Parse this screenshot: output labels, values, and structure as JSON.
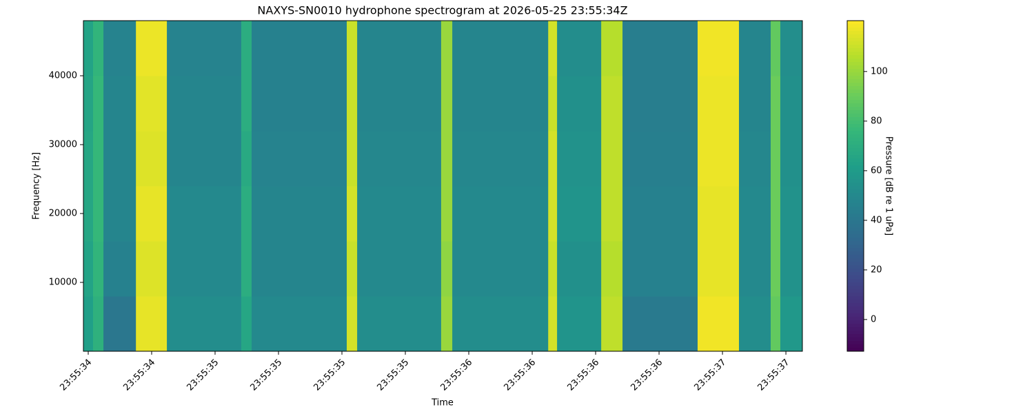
{
  "chart_data": {
    "type": "spectrogram",
    "title": "NAXYS-SN0010 hydrophone spectrogram at 2026-05-25 23:55:34Z",
    "x_label": "Time",
    "y_label": "Frequency [Hz]",
    "colorbar_label": "Pressure [dB re 1 uPa]",
    "colormap": "viridis",
    "xbins": [
      34.481,
      34.519,
      34.56,
      34.688,
      34.81,
      35.103,
      35.144,
      35.519,
      35.56,
      35.891,
      35.935,
      36.313,
      36.348,
      36.522,
      36.606,
      36.902,
      37.065,
      37.19,
      37.228,
      37.315
    ],
    "ybins": [
      0,
      8000,
      16000,
      24000,
      32000,
      40000,
      48000
    ],
    "values": [
      [
        62,
        72,
        40,
        116,
        52,
        66,
        50,
        112,
        52,
        100,
        52,
        112,
        56,
        108,
        42,
        118,
        52,
        88,
        58
      ],
      [
        64,
        74,
        46,
        114,
        50,
        70,
        48,
        110,
        50,
        98,
        50,
        110,
        54,
        106,
        46,
        116,
        50,
        90,
        55
      ],
      [
        66,
        76,
        48,
        116,
        50,
        70,
        48,
        112,
        50,
        100,
        50,
        112,
        56,
        108,
        46,
        116,
        50,
        90,
        55
      ],
      [
        66,
        76,
        48,
        114,
        48,
        68,
        47,
        110,
        49,
        100,
        49,
        112,
        55,
        108,
        45,
        117,
        49,
        90,
        54
      ],
      [
        65,
        76,
        48,
        115,
        48,
        70,
        46,
        110,
        48,
        100,
        48,
        110,
        54,
        108,
        44,
        117,
        48,
        90,
        54
      ],
      [
        64,
        74,
        47,
        117,
        47,
        70,
        46,
        110,
        48,
        100,
        48,
        112,
        52,
        106,
        44,
        118,
        48,
        88,
        53
      ]
    ],
    "xlim": [
      34.481,
      37.315
    ],
    "ylim": [
      0,
      48000
    ],
    "clim": [
      -12.8,
      120.5
    ],
    "xticks": [
      {
        "value": 34.5,
        "label": "23:55:34"
      },
      {
        "value": 34.75,
        "label": "23:55:34"
      },
      {
        "value": 35.0,
        "label": "23:55:35"
      },
      {
        "value": 35.25,
        "label": "23:55:35"
      },
      {
        "value": 35.5,
        "label": "23:55:35"
      },
      {
        "value": 35.75,
        "label": "23:55:35"
      },
      {
        "value": 36.0,
        "label": "23:55:36"
      },
      {
        "value": 36.25,
        "label": "23:55:36"
      },
      {
        "value": 36.5,
        "label": "23:55:36"
      },
      {
        "value": 36.75,
        "label": "23:55:36"
      },
      {
        "value": 37.0,
        "label": "23:55:37"
      },
      {
        "value": 37.25,
        "label": "23:55:37"
      }
    ],
    "yticks": [
      10000,
      20000,
      30000,
      40000
    ],
    "cticks": [
      0,
      20,
      40,
      60,
      80,
      100
    ]
  }
}
